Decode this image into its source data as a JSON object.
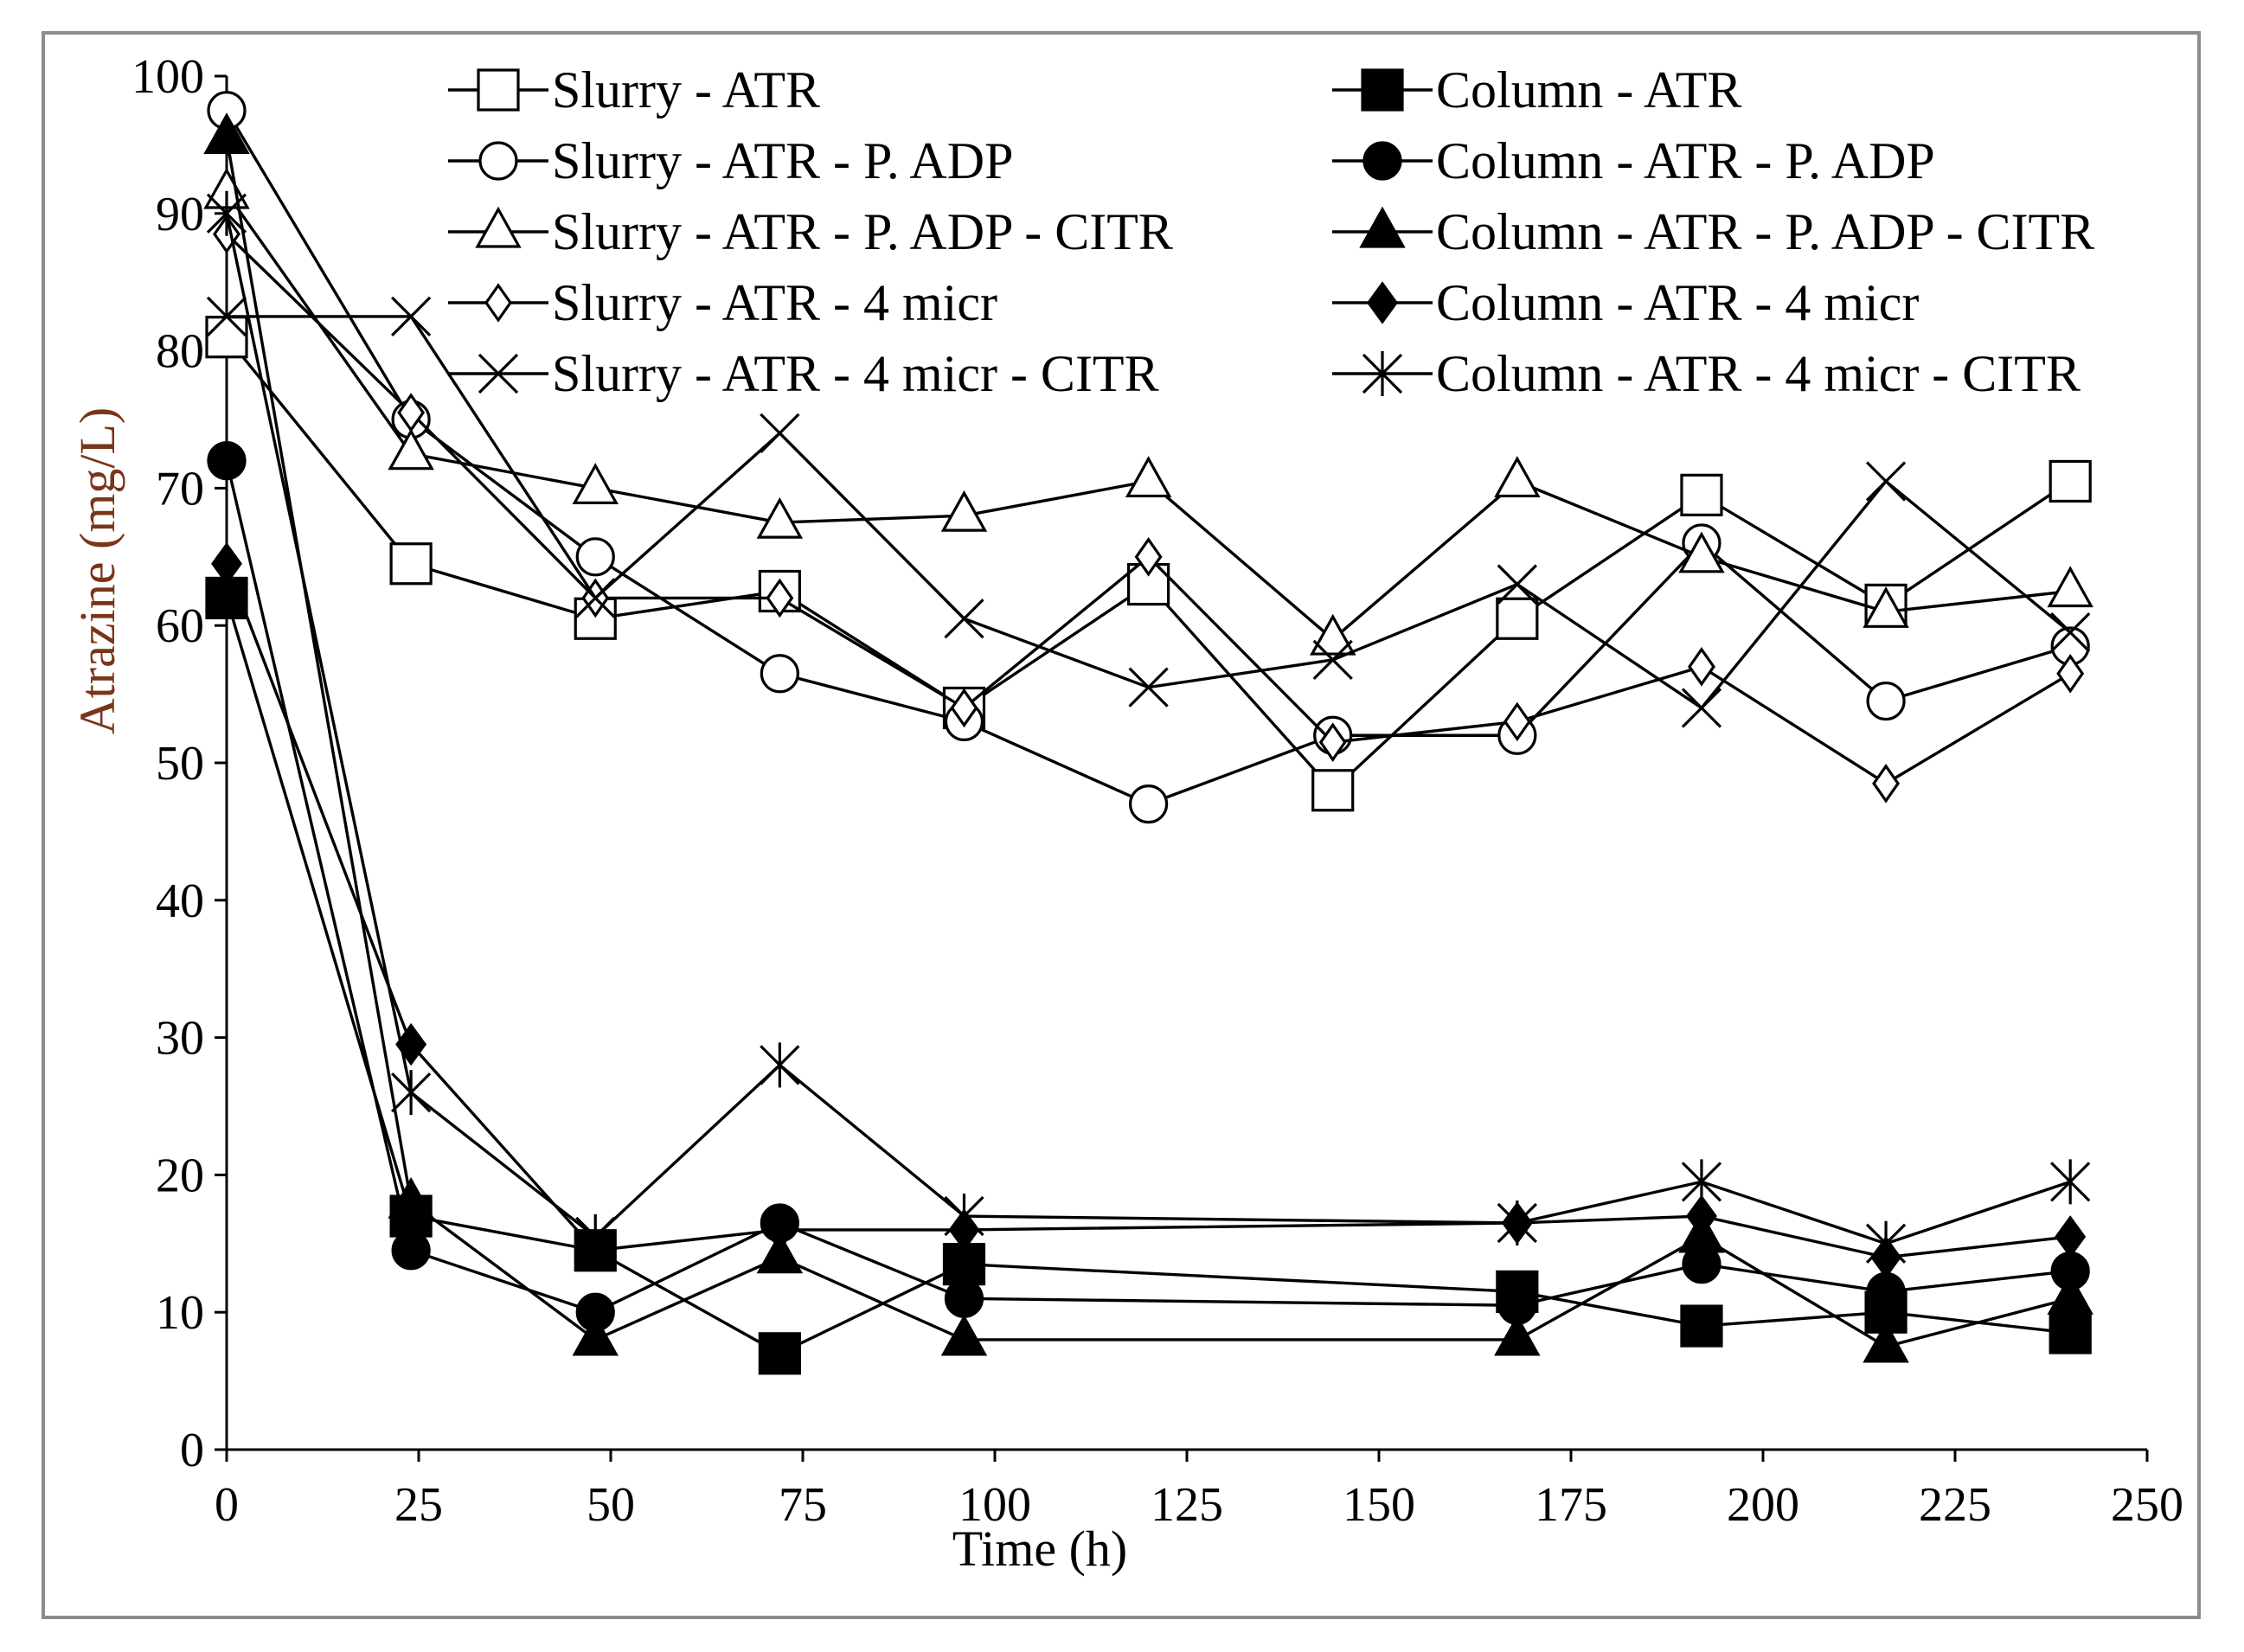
{
  "chart_data": {
    "type": "line",
    "title": "",
    "xlabel": "Time  (h)",
    "ylabel": "Atrazine  (mg/L)",
    "xlim": [
      0,
      250
    ],
    "ylim": [
      0,
      100
    ],
    "x_ticks": [
      "0",
      "25",
      "50",
      "75",
      "100",
      "125",
      "150",
      "175",
      "200",
      "225",
      "250"
    ],
    "y_ticks": [
      "0",
      "10",
      "20",
      "30",
      "40",
      "50",
      "60",
      "70",
      "80",
      "90",
      "100"
    ],
    "legend_position": "top",
    "series": [
      {
        "name": "Slurry - ATR",
        "marker": "square-open",
        "x": [
          0,
          24,
          48,
          72,
          96,
          120,
          144,
          168,
          192,
          216,
          240
        ],
        "values": [
          81,
          64.5,
          60.5,
          62.5,
          54,
          63,
          48,
          60.5,
          69.5,
          61.5,
          70.5
        ]
      },
      {
        "name": "Slurry - ATR - P. ADP",
        "marker": "circle-open",
        "x": [
          0,
          24,
          48,
          72,
          96,
          120,
          144,
          168,
          192,
          216,
          240
        ],
        "values": [
          97.5,
          75,
          65,
          56.5,
          53,
          47,
          52,
          52,
          66,
          54.5,
          58.5
        ]
      },
      {
        "name": "Slurry - ATR - P. ADP - CITR",
        "marker": "triangle-open",
        "x": [
          0,
          24,
          48,
          72,
          96,
          120,
          144,
          168,
          192,
          216,
          240
        ],
        "values": [
          91.5,
          72.5,
          70,
          67.5,
          68,
          70.5,
          59,
          70.5,
          65,
          61,
          62.5
        ]
      },
      {
        "name": "Slurry - ATR - 4 micr",
        "marker": "diamond-open",
        "x": [
          0,
          24,
          48,
          72,
          96,
          120,
          144,
          168,
          192,
          216,
          240
        ],
        "values": [
          88.5,
          75.5,
          62,
          62,
          54,
          65,
          51.5,
          53,
          57,
          48.5,
          56.5
        ]
      },
      {
        "name": "Slurry - ATR - 4 micr - CITR",
        "marker": "x",
        "x": [
          0,
          24,
          48,
          72,
          96,
          120,
          144,
          168,
          192,
          216,
          240
        ],
        "values": [
          82.5,
          82.5,
          62,
          74,
          60.5,
          55.5,
          57.5,
          63,
          54,
          70.5,
          59.5
        ]
      },
      {
        "name": "Column - ATR",
        "marker": "square-filled",
        "x": [
          0,
          24,
          48,
          72,
          96,
          120,
          144,
          168,
          192,
          216,
          240
        ],
        "values": [
          62,
          17,
          14.5,
          7,
          13.5,
          null,
          null,
          11.5,
          9,
          10,
          8.5
        ]
      },
      {
        "name": "Column - ATR - P. ADP",
        "marker": "circle-filled",
        "x": [
          0,
          24,
          48,
          72,
          96,
          120,
          144,
          168,
          192,
          216,
          240
        ],
        "values": [
          72,
          14.5,
          10,
          16.5,
          11,
          null,
          null,
          10.5,
          13.5,
          11.5,
          13
        ]
      },
      {
        "name": "Column - ATR - P. ADP - CITR",
        "marker": "triangle-filled",
        "x": [
          0,
          24,
          48,
          72,
          96,
          120,
          144,
          168,
          192,
          216,
          240
        ],
        "values": [
          95.5,
          18,
          8,
          14,
          8,
          null,
          null,
          8,
          15.5,
          7.5,
          11
        ]
      },
      {
        "name": "Column - ATR - 4 micr",
        "marker": "diamond-filled",
        "x": [
          0,
          24,
          48,
          72,
          96,
          120,
          144,
          168,
          192,
          216,
          240
        ],
        "values": [
          64.5,
          29.5,
          14.5,
          16,
          16,
          null,
          null,
          16.5,
          17,
          14,
          15.5
        ]
      },
      {
        "name": "Column - ATR - 4 micr - CITR",
        "marker": "asterisk",
        "x": [
          0,
          24,
          48,
          72,
          96,
          120,
          144,
          168,
          192,
          216,
          240
        ],
        "values": [
          90,
          26,
          15.5,
          28,
          17,
          null,
          null,
          16.5,
          19.5,
          15,
          19.5
        ]
      }
    ],
    "colors": {
      "line": "#000000",
      "frame": "#8c8c8c",
      "ylabel": "#7a3518"
    }
  }
}
